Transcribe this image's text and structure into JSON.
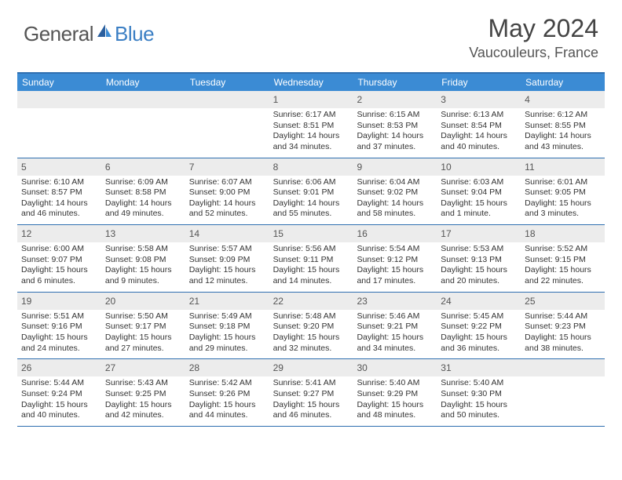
{
  "logo": {
    "text1": "General",
    "text2": "Blue"
  },
  "title": "May 2024",
  "location": "Vaucouleurs, France",
  "colors": {
    "header_bg": "#3b8bd4",
    "border": "#2f6fb0",
    "daynum_bg": "#ececec",
    "logo_blue": "#3b7fc4"
  },
  "day_headers": [
    "Sunday",
    "Monday",
    "Tuesday",
    "Wednesday",
    "Thursday",
    "Friday",
    "Saturday"
  ],
  "weeks": [
    [
      {
        "blank": true
      },
      {
        "blank": true
      },
      {
        "blank": true
      },
      {
        "n": "1",
        "sr": "6:17 AM",
        "ss": "8:51 PM",
        "dl": "14 hours and 34 minutes."
      },
      {
        "n": "2",
        "sr": "6:15 AM",
        "ss": "8:53 PM",
        "dl": "14 hours and 37 minutes."
      },
      {
        "n": "3",
        "sr": "6:13 AM",
        "ss": "8:54 PM",
        "dl": "14 hours and 40 minutes."
      },
      {
        "n": "4",
        "sr": "6:12 AM",
        "ss": "8:55 PM",
        "dl": "14 hours and 43 minutes."
      }
    ],
    [
      {
        "n": "5",
        "sr": "6:10 AM",
        "ss": "8:57 PM",
        "dl": "14 hours and 46 minutes."
      },
      {
        "n": "6",
        "sr": "6:09 AM",
        "ss": "8:58 PM",
        "dl": "14 hours and 49 minutes."
      },
      {
        "n": "7",
        "sr": "6:07 AM",
        "ss": "9:00 PM",
        "dl": "14 hours and 52 minutes."
      },
      {
        "n": "8",
        "sr": "6:06 AM",
        "ss": "9:01 PM",
        "dl": "14 hours and 55 minutes."
      },
      {
        "n": "9",
        "sr": "6:04 AM",
        "ss": "9:02 PM",
        "dl": "14 hours and 58 minutes."
      },
      {
        "n": "10",
        "sr": "6:03 AM",
        "ss": "9:04 PM",
        "dl": "15 hours and 1 minute."
      },
      {
        "n": "11",
        "sr": "6:01 AM",
        "ss": "9:05 PM",
        "dl": "15 hours and 3 minutes."
      }
    ],
    [
      {
        "n": "12",
        "sr": "6:00 AM",
        "ss": "9:07 PM",
        "dl": "15 hours and 6 minutes."
      },
      {
        "n": "13",
        "sr": "5:58 AM",
        "ss": "9:08 PM",
        "dl": "15 hours and 9 minutes."
      },
      {
        "n": "14",
        "sr": "5:57 AM",
        "ss": "9:09 PM",
        "dl": "15 hours and 12 minutes."
      },
      {
        "n": "15",
        "sr": "5:56 AM",
        "ss": "9:11 PM",
        "dl": "15 hours and 14 minutes."
      },
      {
        "n": "16",
        "sr": "5:54 AM",
        "ss": "9:12 PM",
        "dl": "15 hours and 17 minutes."
      },
      {
        "n": "17",
        "sr": "5:53 AM",
        "ss": "9:13 PM",
        "dl": "15 hours and 20 minutes."
      },
      {
        "n": "18",
        "sr": "5:52 AM",
        "ss": "9:15 PM",
        "dl": "15 hours and 22 minutes."
      }
    ],
    [
      {
        "n": "19",
        "sr": "5:51 AM",
        "ss": "9:16 PM",
        "dl": "15 hours and 24 minutes."
      },
      {
        "n": "20",
        "sr": "5:50 AM",
        "ss": "9:17 PM",
        "dl": "15 hours and 27 minutes."
      },
      {
        "n": "21",
        "sr": "5:49 AM",
        "ss": "9:18 PM",
        "dl": "15 hours and 29 minutes."
      },
      {
        "n": "22",
        "sr": "5:48 AM",
        "ss": "9:20 PM",
        "dl": "15 hours and 32 minutes."
      },
      {
        "n": "23",
        "sr": "5:46 AM",
        "ss": "9:21 PM",
        "dl": "15 hours and 34 minutes."
      },
      {
        "n": "24",
        "sr": "5:45 AM",
        "ss": "9:22 PM",
        "dl": "15 hours and 36 minutes."
      },
      {
        "n": "25",
        "sr": "5:44 AM",
        "ss": "9:23 PM",
        "dl": "15 hours and 38 minutes."
      }
    ],
    [
      {
        "n": "26",
        "sr": "5:44 AM",
        "ss": "9:24 PM",
        "dl": "15 hours and 40 minutes."
      },
      {
        "n": "27",
        "sr": "5:43 AM",
        "ss": "9:25 PM",
        "dl": "15 hours and 42 minutes."
      },
      {
        "n": "28",
        "sr": "5:42 AM",
        "ss": "9:26 PM",
        "dl": "15 hours and 44 minutes."
      },
      {
        "n": "29",
        "sr": "5:41 AM",
        "ss": "9:27 PM",
        "dl": "15 hours and 46 minutes."
      },
      {
        "n": "30",
        "sr": "5:40 AM",
        "ss": "9:29 PM",
        "dl": "15 hours and 48 minutes."
      },
      {
        "n": "31",
        "sr": "5:40 AM",
        "ss": "9:30 PM",
        "dl": "15 hours and 50 minutes."
      },
      {
        "blank": true
      }
    ]
  ],
  "labels": {
    "sunrise": "Sunrise: ",
    "sunset": "Sunset: ",
    "daylight": "Daylight: "
  }
}
